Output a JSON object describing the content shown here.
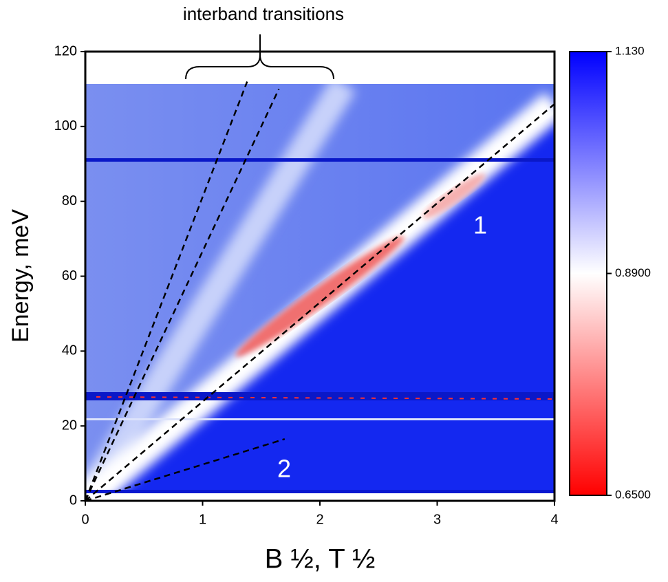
{
  "chart_data": {
    "type": "heatmap",
    "x_label": "B ½, T ½",
    "y_label": "Energy, meV",
    "xlim": [
      0,
      4
    ],
    "ylim": [
      0,
      120
    ],
    "xticks": [
      0,
      1,
      2,
      3,
      4
    ],
    "yticks": [
      0,
      20,
      40,
      60,
      80,
      100,
      120
    ],
    "colorbar": {
      "lim": [
        0.65,
        1.13
      ],
      "colormap": [
        "#ff0000",
        "#ffffff",
        "#0000ff"
      ],
      "ticks": [
        {
          "value": 0.65,
          "label": "0.6500"
        },
        {
          "value": 0.89,
          "label": "0.8900"
        },
        {
          "value": 1.13,
          "label": "1.130"
        }
      ]
    },
    "annotations": {
      "bracket": "interband transitions",
      "line_1": "1",
      "line_2": "2"
    },
    "series": [
      {
        "color": "#000000",
        "x": [
          0,
          1.38
        ],
        "values": [
          0,
          112
        ]
      },
      {
        "color": "#000000",
        "x": [
          0,
          1.65
        ],
        "values": [
          0,
          110
        ]
      },
      {
        "color": "#000000",
        "x": [
          0,
          4
        ],
        "values": [
          0,
          106
        ]
      },
      {
        "color": "#000000",
        "x": [
          0,
          1.7
        ],
        "values": [
          0,
          16.5
        ]
      }
    ]
  }
}
